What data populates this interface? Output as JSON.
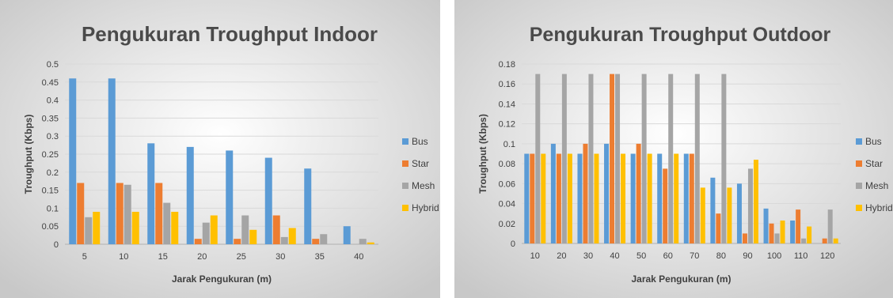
{
  "colors": {
    "Bus": "#5b9bd5",
    "Star": "#ed7d31",
    "Mesh": "#a5a5a5",
    "Hybrid": "#ffc000",
    "background_center": "#ffffff",
    "background_edge": "#c8c8c8"
  },
  "chart_data": [
    {
      "type": "bar",
      "title": "Pengukuran Troughput Indoor",
      "xlabel": "Jarak Pengukuran (m)",
      "ylabel": "Troughput (Kbps)",
      "categories": [
        "5",
        "10",
        "15",
        "20",
        "25",
        "30",
        "35",
        "40"
      ],
      "ylim": [
        0,
        0.5
      ],
      "yticks": [
        "0",
        "0.05",
        "0.1",
        "0.15",
        "0.2",
        "0.25",
        "0.3",
        "0.35",
        "0.4",
        "0.45",
        "0.5"
      ],
      "grid": true,
      "legend_position": "right",
      "series": [
        {
          "name": "Bus",
          "values": [
            0.46,
            0.46,
            0.28,
            0.27,
            0.26,
            0.24,
            0.21,
            0.05
          ]
        },
        {
          "name": "Star",
          "values": [
            0.17,
            0.17,
            0.17,
            0.015,
            0.015,
            0.08,
            0.015,
            0
          ]
        },
        {
          "name": "Mesh",
          "values": [
            0.075,
            0.165,
            0.115,
            0.06,
            0.08,
            0.02,
            0.028,
            0.015
          ]
        },
        {
          "name": "Hybrid",
          "values": [
            0.09,
            0.09,
            0.09,
            0.08,
            0.04,
            0.045,
            0,
            0.005
          ]
        }
      ]
    },
    {
      "type": "bar",
      "title": "Pengukuran Troughput Outdoor",
      "xlabel": "Jarak Pengukuran (m)",
      "ylabel": "Troughput (Kbps)",
      "categories": [
        "10",
        "20",
        "30",
        "40",
        "50",
        "60",
        "70",
        "80",
        "90",
        "100",
        "110",
        "120"
      ],
      "ylim": [
        0,
        0.18
      ],
      "yticks": [
        "0",
        "0.02",
        "0.04",
        "0.06",
        "0.08",
        "0.1",
        "0.12",
        "0.14",
        "0.16",
        "0.18"
      ],
      "grid": true,
      "legend_position": "right",
      "series": [
        {
          "name": "Bus",
          "values": [
            0.09,
            0.1,
            0.09,
            0.1,
            0.09,
            0.09,
            0.09,
            0.066,
            0.06,
            0.035,
            0.023,
            0
          ]
        },
        {
          "name": "Star",
          "values": [
            0.09,
            0.09,
            0.1,
            0.17,
            0.1,
            0.075,
            0.09,
            0.03,
            0.01,
            0.02,
            0.034,
            0.005
          ]
        },
        {
          "name": "Mesh",
          "values": [
            0.17,
            0.17,
            0.17,
            0.17,
            0.17,
            0.17,
            0.17,
            0.17,
            0.075,
            0.01,
            0.005,
            0.034
          ]
        },
        {
          "name": "Hybrid",
          "values": [
            0.09,
            0.09,
            0.09,
            0.09,
            0.09,
            0.09,
            0.056,
            0.056,
            0.084,
            0.023,
            0.017,
            0.005
          ]
        }
      ]
    }
  ]
}
